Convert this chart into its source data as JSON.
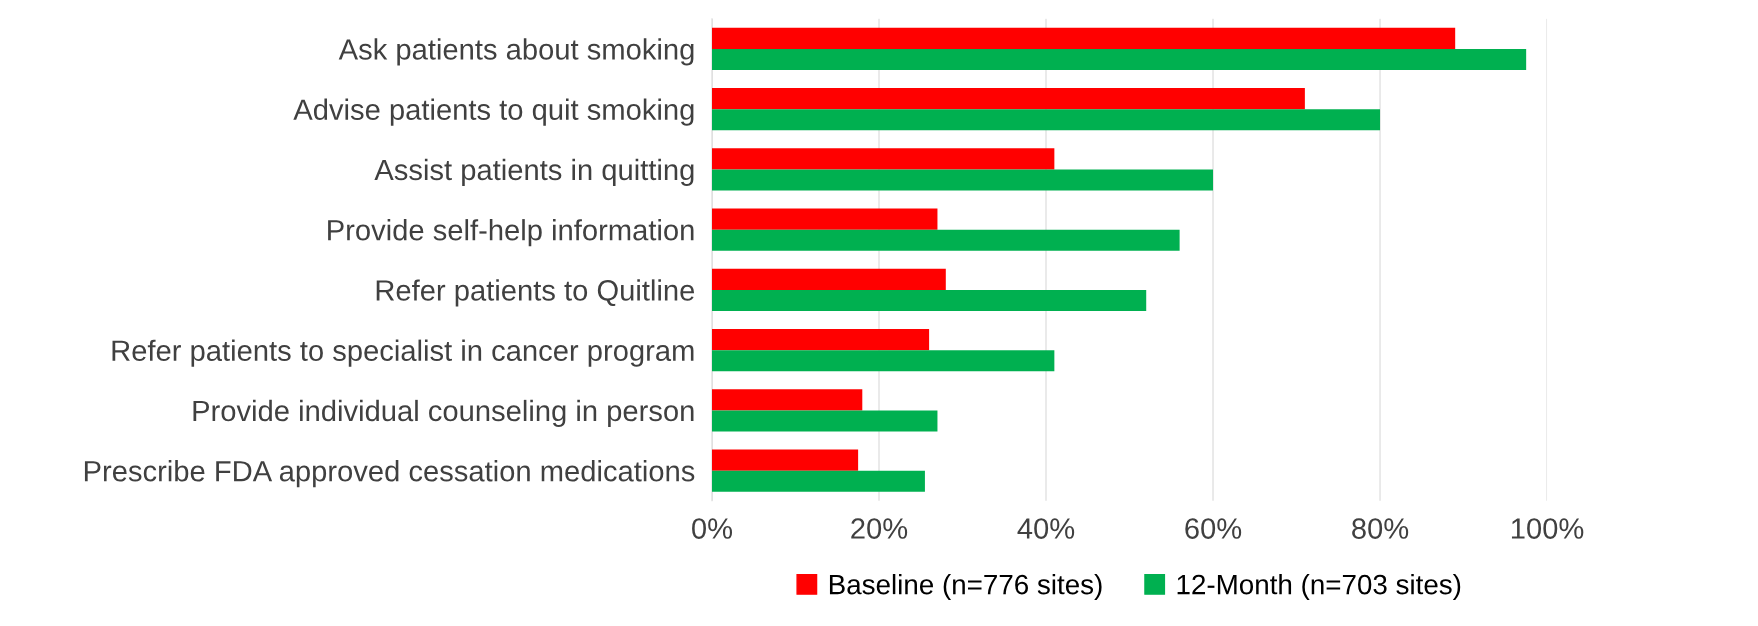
{
  "chart_data": {
    "type": "bar",
    "orientation": "horizontal",
    "categories": [
      "Ask patients about smoking",
      "Advise patients to quit smoking",
      "Assist patients in quitting",
      "Provide self-help information",
      "Refer patients to Quitline",
      "Refer patients to specialist in cancer program",
      "Provide individual counseling in person",
      "Prescribe FDA approved cessation medications"
    ],
    "series": [
      {
        "name": "Baseline (n=776 sites)",
        "color": "#ff0000",
        "values": [
          89,
          71,
          41,
          27,
          28,
          26,
          18,
          17.5
        ]
      },
      {
        "name": "12-Month (n=703 sites)",
        "color": "#00b050",
        "values": [
          97.5,
          80,
          60,
          56,
          52,
          41,
          27,
          25.5
        ]
      }
    ],
    "xlim": [
      0,
      100
    ],
    "xticks": [
      {
        "value": 0,
        "label": "0%"
      },
      {
        "value": 20,
        "label": "20%"
      },
      {
        "value": 40,
        "label": "40%"
      },
      {
        "value": 60,
        "label": "60%"
      },
      {
        "value": 80,
        "label": "80%"
      },
      {
        "value": 100,
        "label": "100%"
      }
    ],
    "grid": "x",
    "legend": "bottom"
  }
}
